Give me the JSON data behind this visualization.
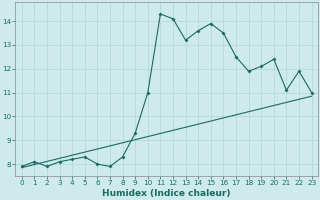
{
  "xlabel": "Humidex (Indice chaleur)",
  "background_color": "#ceeaec",
  "grid_color": "#b8d8da",
  "line_color": "#1a6b60",
  "x_data": [
    0,
    1,
    2,
    3,
    4,
    5,
    6,
    7,
    8,
    9,
    10,
    11,
    12,
    13,
    14,
    15,
    16,
    17,
    18,
    19,
    20,
    21,
    22,
    23
  ],
  "y_curve": [
    7.9,
    8.1,
    7.9,
    8.1,
    8.2,
    8.3,
    8.0,
    7.9,
    8.3,
    9.3,
    11.0,
    14.3,
    14.1,
    13.2,
    13.6,
    13.9,
    13.5,
    12.5,
    11.9,
    12.1,
    12.4,
    11.1,
    11.9,
    11.0
  ],
  "y_linear_start": 7.85,
  "y_linear_end": 10.85,
  "xlim_min": -0.5,
  "xlim_max": 23.5,
  "ylim_min": 7.5,
  "ylim_max": 14.8,
  "yticks": [
    8,
    9,
    10,
    11,
    12,
    13,
    14
  ],
  "xticks": [
    0,
    1,
    2,
    3,
    4,
    5,
    6,
    7,
    8,
    9,
    10,
    11,
    12,
    13,
    14,
    15,
    16,
    17,
    18,
    19,
    20,
    21,
    22,
    23
  ],
  "tick_fontsize": 5.2,
  "xlabel_fontsize": 6.5
}
